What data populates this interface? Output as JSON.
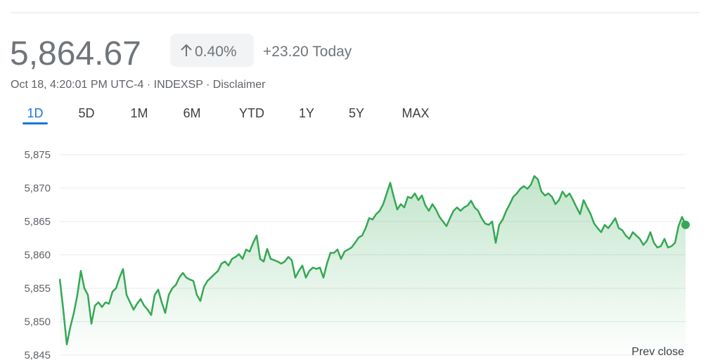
{
  "header": {
    "price": "5,864.67",
    "change_pct": "0.40%",
    "change_abs": "+23.20 Today",
    "meta": "Oct 18, 4:20:01 PM UTC-4 · INDEXSP · Disclaimer"
  },
  "tabs": [
    "1D",
    "5D",
    "1M",
    "6M",
    "YTD",
    "1Y",
    "5Y",
    "MAX"
  ],
  "chart_data": {
    "type": "line",
    "color": "#34a853",
    "grid": true,
    "annotation": "Prev close",
    "ylim": [
      5845,
      5875
    ],
    "yticks": [
      {
        "value": 5845,
        "label": "5,845"
      },
      {
        "value": 5850,
        "label": "5,850"
      },
      {
        "value": 5855,
        "label": "5,855"
      },
      {
        "value": 5860,
        "label": "5,860"
      },
      {
        "value": 5865,
        "label": "5,865"
      },
      {
        "value": 5870,
        "label": "5,870"
      },
      {
        "value": 5875,
        "label": "5,875"
      }
    ],
    "values": [
      5856.4,
      5851.8,
      5846.6,
      5849.2,
      5851.3,
      5854.0,
      5857.6,
      5855.0,
      5854.0,
      5849.7,
      5852.4,
      5852.9,
      5852.2,
      5852.9,
      5852.7,
      5854.5,
      5855.0,
      5856.6,
      5857.9,
      5854.0,
      5852.9,
      5851.8,
      5852.7,
      5853.4,
      5852.4,
      5851.8,
      5851.0,
      5854.0,
      5854.8,
      5852.9,
      5851.3,
      5854.0,
      5855.0,
      5855.5,
      5856.6,
      5857.3,
      5856.6,
      5856.3,
      5856.1,
      5854.0,
      5853.1,
      5855.2,
      5856.1,
      5856.6,
      5857.1,
      5857.6,
      5858.7,
      5859.0,
      5858.4,
      5859.4,
      5859.7,
      5860.1,
      5859.4,
      5860.8,
      5860.5,
      5861.8,
      5862.9,
      5859.4,
      5859.0,
      5860.9,
      5859.4,
      5859.2,
      5859.0,
      5858.7,
      5859.0,
      5859.7,
      5859.2,
      5856.6,
      5857.6,
      5858.4,
      5856.6,
      5857.6,
      5858.1,
      5857.9,
      5858.1,
      5856.6,
      5858.7,
      5860.3,
      5860.3,
      5860.8,
      5859.4,
      5860.5,
      5860.8,
      5861.1,
      5861.8,
      5862.6,
      5862.9,
      5864.0,
      5865.5,
      5865.3,
      5866.1,
      5866.6,
      5867.6,
      5869.2,
      5870.8,
      5868.7,
      5866.8,
      5867.6,
      5867.1,
      5868.7,
      5868.5,
      5869.2,
      5868.2,
      5868.9,
      5867.4,
      5866.6,
      5867.6,
      5866.8,
      5865.7,
      5865.0,
      5864.3,
      5865.5,
      5866.6,
      5867.1,
      5866.6,
      5867.1,
      5867.4,
      5868.1,
      5867.1,
      5866.6,
      5865.5,
      5864.7,
      5864.5,
      5865.0,
      5861.8,
      5864.5,
      5865.3,
      5866.6,
      5867.6,
      5868.7,
      5869.2,
      5869.9,
      5870.3,
      5869.9,
      5870.5,
      5871.8,
      5871.3,
      5869.5,
      5868.9,
      5869.2,
      5868.7,
      5867.6,
      5868.2,
      5869.5,
      5868.7,
      5869.2,
      5868.2,
      5867.1,
      5866.1,
      5868.2,
      5867.1,
      5866.1,
      5864.7,
      5864.0,
      5863.4,
      5864.5,
      5864.0,
      5864.7,
      5865.5,
      5864.0,
      5863.7,
      5862.9,
      5862.4,
      5863.4,
      5862.9,
      5862.4,
      5861.5,
      5862.1,
      5863.4,
      5861.8,
      5861.1,
      5861.3,
      5862.4,
      5861.1,
      5861.3,
      5861.8,
      5864.3,
      5865.7,
      5864.5
    ]
  }
}
